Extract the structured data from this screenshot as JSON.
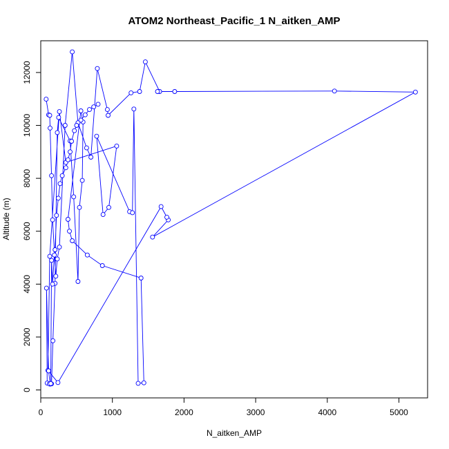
{
  "chart_data": {
    "type": "line",
    "title": "ATOM2 Northeast_Pacific_1 N_aitken_AMP",
    "xlabel": "N_aitken_AMP",
    "ylabel": "Altitude (m)",
    "xlim": [
      0,
      5400
    ],
    "ylim": [
      -300,
      13200
    ],
    "xticks": [
      0,
      1000,
      2000,
      3000,
      4000,
      5000
    ],
    "yticks": [
      0,
      2000,
      4000,
      6000,
      8000,
      10000,
      12000
    ],
    "grid": false,
    "legend": "none",
    "series": [
      {
        "color": "#0000ff",
        "marker": "open-circle",
        "x": [
          75,
          110,
          125,
          130,
          150,
          165,
          210,
          230,
          260,
          340,
          440,
          520,
          640,
          700,
          790,
          930,
          940,
          1260,
          1380,
          1460,
          1660,
          1630,
          1870,
          4100,
          5230,
          1560,
          1780,
          1760,
          1680,
          240,
          100,
          125,
          260,
          350,
          1060,
          950,
          870,
          780,
          1240,
          1280,
          1300,
          1360,
          1440,
          1400,
          860,
          650,
          440,
          400,
          380,
          560,
          590,
          580,
          540,
          520,
          460,
          410,
          250,
          230,
          200,
          170,
          150,
          130,
          110,
          80,
          90,
          120,
          140,
          150,
          165,
          190,
          200,
          220,
          245,
          270,
          300,
          350,
          380,
          410,
          430,
          470,
          500,
          560,
          620,
          680,
          740,
          800
        ],
        "y": [
          10990,
          10400,
          10380,
          9900,
          8100,
          6430,
          4300,
          4950,
          5400,
          10000,
          12780,
          10100,
          9150,
          8800,
          12150,
          10600,
          10380,
          11230,
          11280,
          12400,
          11280,
          11280,
          11280,
          11300,
          11260,
          5780,
          6430,
          6530,
          6930,
          280,
          740,
          5050,
          10520,
          8600,
          9220,
          6900,
          6630,
          9590,
          6740,
          6700,
          10620,
          250,
          270,
          4230,
          4700,
          5100,
          5640,
          6000,
          6450,
          10550,
          10130,
          7920,
          6900,
          4100,
          7300,
          9410,
          10300,
          9730,
          4030,
          1860,
          230,
          220,
          720,
          3850,
          260,
          230,
          240,
          4900,
          4000,
          5100,
          5300,
          6600,
          7250,
          7800,
          8100,
          8400,
          8700,
          9000,
          9400,
          9800,
          10000,
          10200,
          10400,
          10600,
          10700,
          10800
        ]
      }
    ]
  }
}
